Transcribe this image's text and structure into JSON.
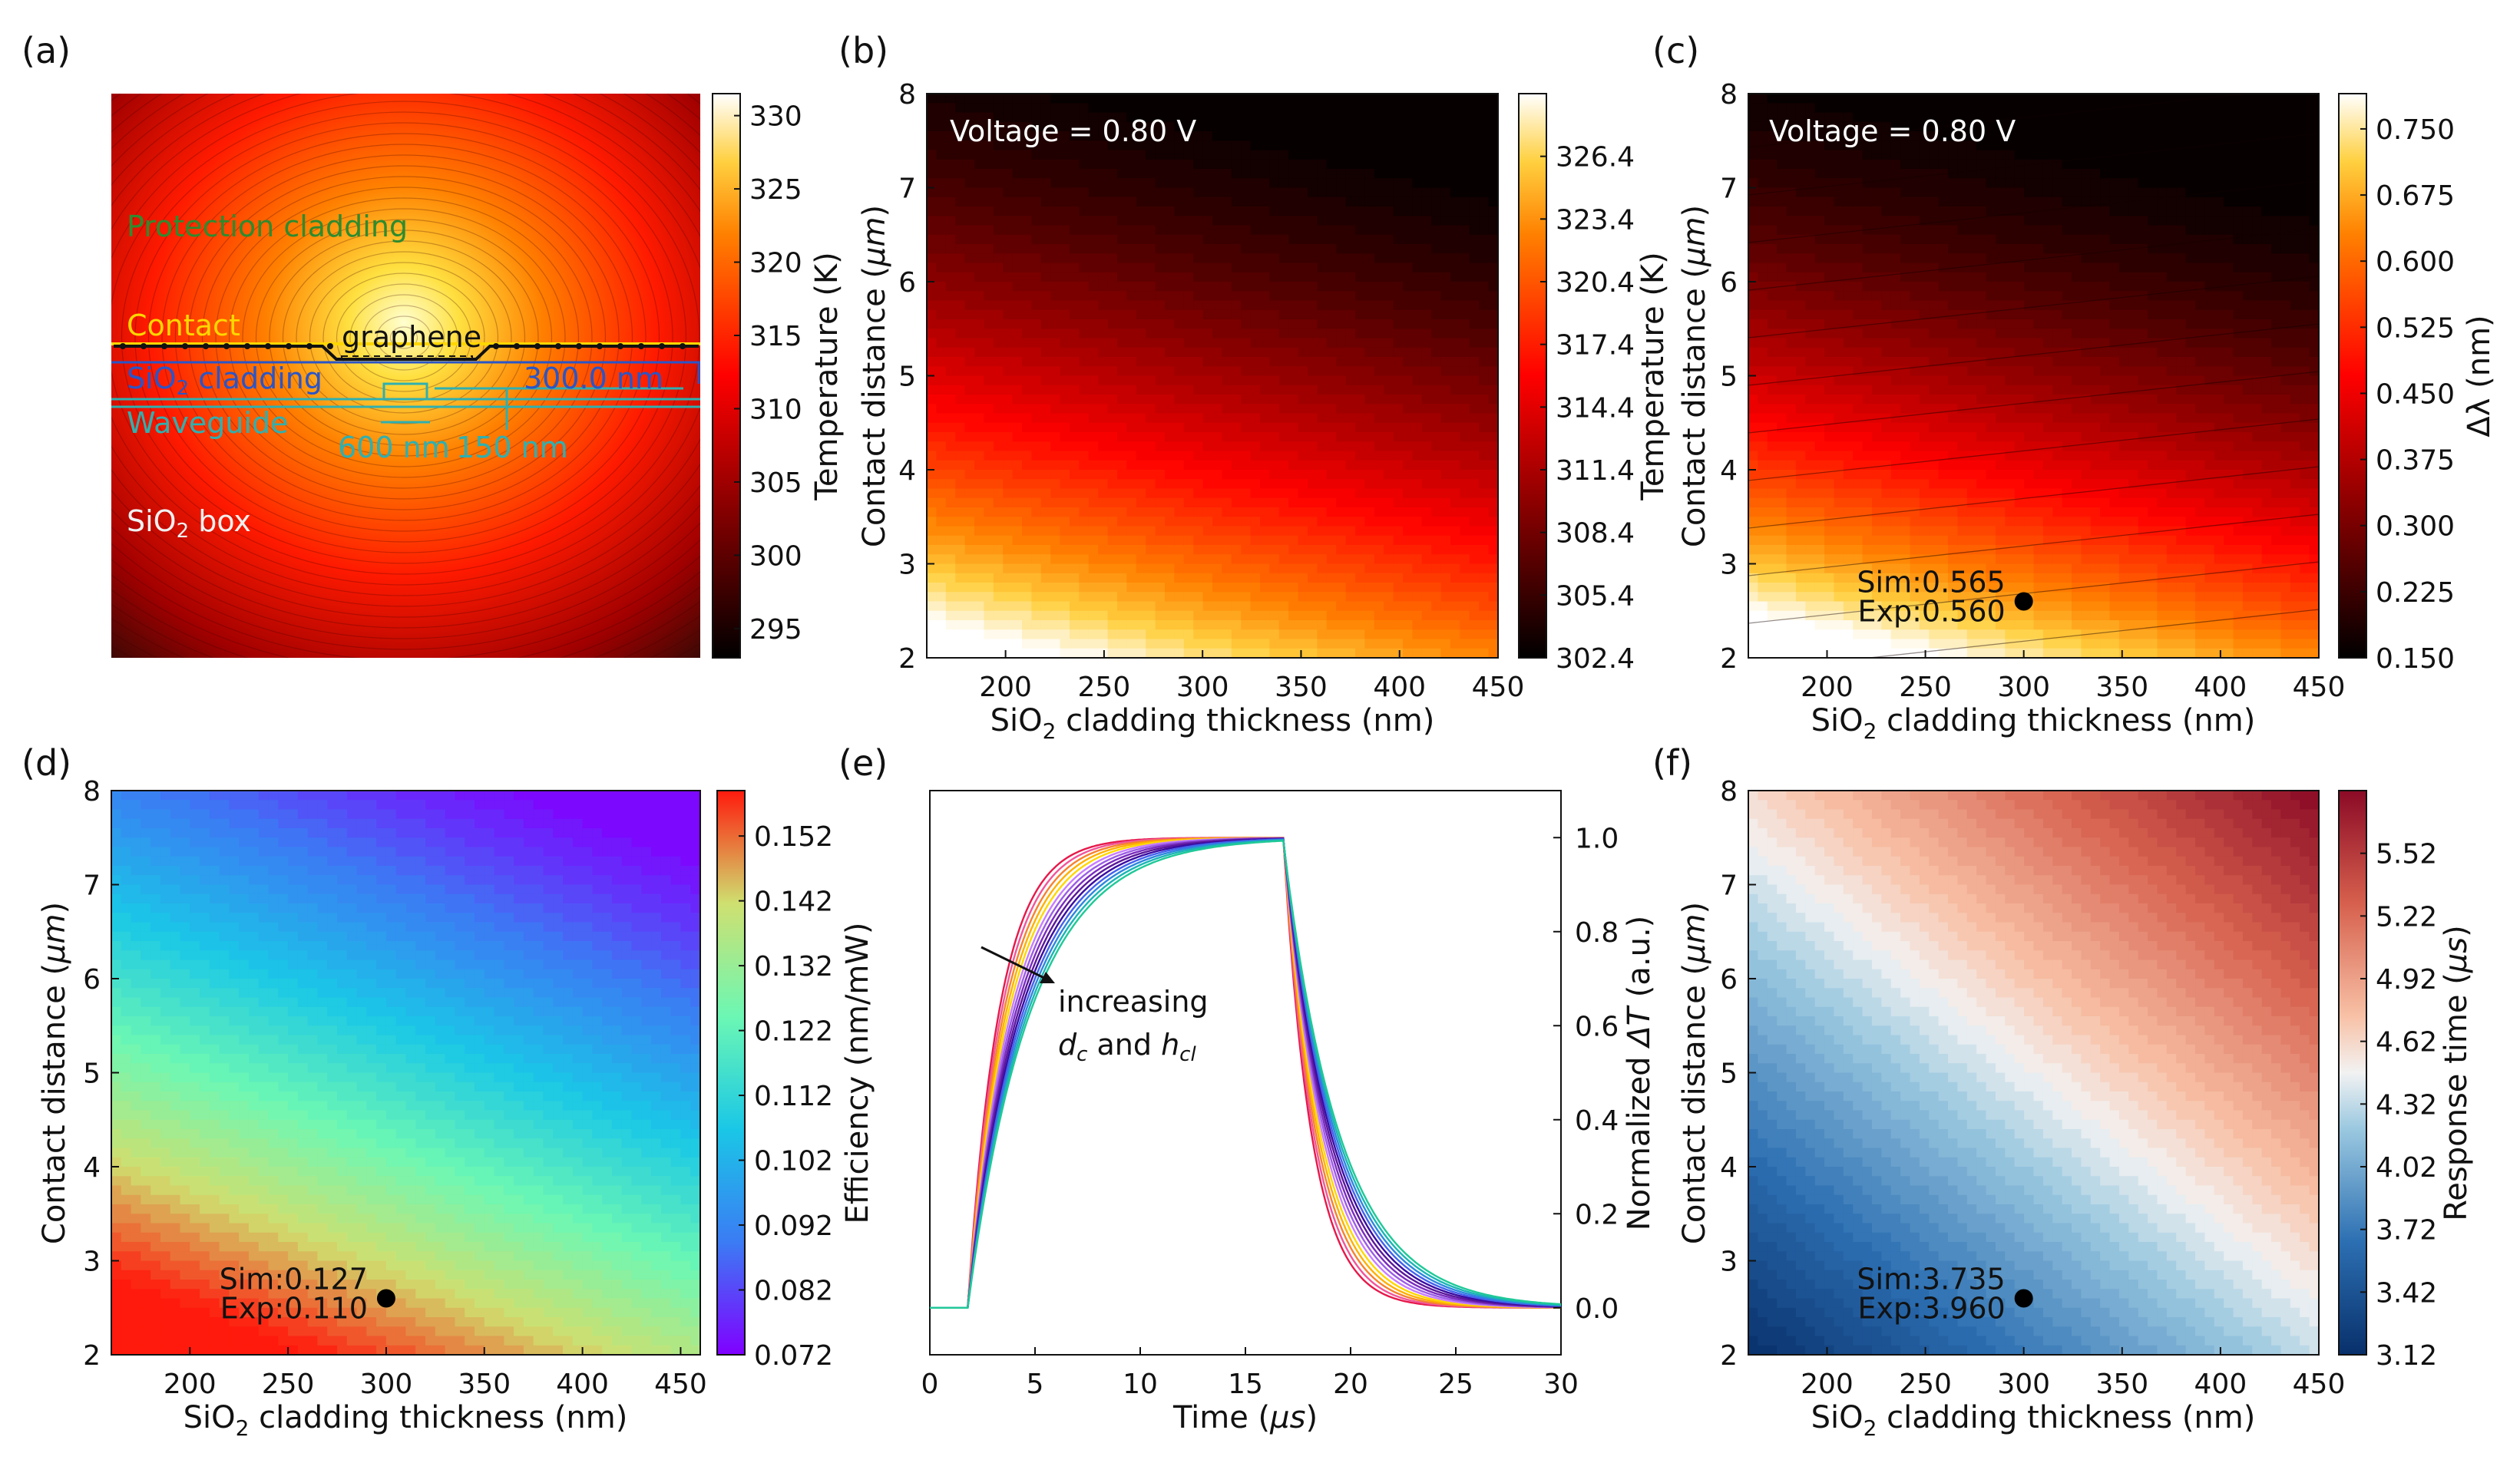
{
  "chart_data": [
    {
      "panel": "(a)",
      "type": "heatmap",
      "description_labels": {
        "protection": "Protection cladding",
        "contact": "Contact",
        "graphene": "graphene",
        "cladding": "SiO",
        "cladding_rest": " cladding",
        "waveguide": "Waveguide",
        "box": "SiO",
        "box_rest": " box",
        "dim1": "300.0 nm",
        "dim2": "600 nm",
        "dim3": "150 nm"
      },
      "colorbar": {
        "label": "Temperature (K)",
        "ticks": [
          295,
          300,
          305,
          310,
          315,
          320,
          325,
          330
        ],
        "range": [
          293,
          331.5
        ],
        "cmap": "afmhot"
      }
    },
    {
      "panel": "(b)",
      "type": "heatmap",
      "annotation": "Voltage = 0.80 V",
      "xlabel_main": "SiO",
      "xlabel_sub": "2",
      "xlabel_rest": " cladding thickness (nm)",
      "ylabel_main": "Contact distance (",
      "ylabel_unit": "μm",
      "ylabel_close": ")",
      "xlim": [
        160,
        450
      ],
      "ylim": [
        2,
        8
      ],
      "xticks": [
        200,
        250,
        300,
        350,
        400,
        450
      ],
      "yticks": [
        2,
        3,
        4,
        5,
        6,
        7,
        8
      ],
      "colorbar": {
        "label": "Temperature (K)",
        "ticks": [
          "302.4",
          "305.4",
          "308.4",
          "311.4",
          "314.4",
          "317.4",
          "320.4",
          "323.4",
          "326.4"
        ],
        "range": [
          302.4,
          329.4
        ],
        "cmap": "afmhot"
      }
    },
    {
      "panel": "(c)",
      "type": "heatmap",
      "annotation": "Voltage = 0.80 V",
      "xlabel_main": "SiO",
      "xlabel_sub": "2",
      "xlabel_rest": " cladding thickness (nm)",
      "ylabel_main": "Contact distance (",
      "ylabel_unit": "μm",
      "ylabel_close": ")",
      "xlim": [
        160,
        450
      ],
      "ylim": [
        2,
        8
      ],
      "xticks": [
        200,
        250,
        300,
        350,
        400,
        450
      ],
      "yticks": [
        2,
        3,
        4,
        5,
        6,
        7,
        8
      ],
      "point": {
        "x": 300,
        "y": 2.6,
        "sim": "Sim:0.565",
        "exp": "Exp:0.560"
      },
      "colorbar": {
        "label": "Δλ (nm)",
        "ticks": [
          "0.150",
          "0.225",
          "0.300",
          "0.375",
          "0.450",
          "0.525",
          "0.600",
          "0.675",
          "0.750"
        ],
        "range": [
          0.15,
          0.79
        ],
        "cmap": "afmhot"
      }
    },
    {
      "panel": "(d)",
      "type": "heatmap",
      "xlabel_main": "SiO",
      "xlabel_sub": "2",
      "xlabel_rest": " cladding thickness (nm)",
      "ylabel_main": "Contact distance (",
      "ylabel_unit": "μm",
      "ylabel_close": ")",
      "xlim": [
        160,
        460
      ],
      "ylim": [
        2,
        8
      ],
      "xticks": [
        200,
        250,
        300,
        350,
        400,
        450
      ],
      "yticks": [
        2,
        3,
        4,
        5,
        6,
        7,
        8
      ],
      "point": {
        "x": 300,
        "y": 2.6,
        "sim": "Sim:0.127",
        "exp": "Exp:0.110"
      },
      "colorbar": {
        "label": "Efficiency (nm/mW)",
        "ticks": [
          "0.072",
          "0.082",
          "0.092",
          "0.102",
          "0.112",
          "0.122",
          "0.132",
          "0.142",
          "0.152"
        ],
        "range": [
          0.072,
          0.159
        ],
        "cmap": "rainbow"
      }
    },
    {
      "panel": "(e)",
      "type": "line",
      "xlabel_main": "Time (",
      "xlabel_unit": "μs",
      "xlabel_close": ")",
      "ylabel_main": "Normalized ",
      "ylabel_var": "ΔT",
      "ylabel_rest": " (a.u.)",
      "xlim": [
        0,
        30
      ],
      "ylim": [
        -0.1,
        1.1
      ],
      "xticks": [
        0,
        5,
        10,
        15,
        20,
        25,
        30
      ],
      "yticks": [
        "0.0",
        "0.2",
        "0.4",
        "0.6",
        "0.8",
        "1.0"
      ],
      "annotation_line1": "increasing",
      "annotation_d": "d",
      "annotation_c": "c",
      "annotation_and": " and ",
      "annotation_h": "h",
      "annotation_cl": "cl",
      "series_description": "family of step responses: rise at t=1.8 μs, fall at t=16.8 μs, time constants increase with contact distance and cladding thickness",
      "tau_range_us": [
        1.5,
        3.0
      ],
      "series_count": 14
    },
    {
      "panel": "(f)",
      "type": "heatmap",
      "xlabel_main": "SiO",
      "xlabel_sub": "2",
      "xlabel_rest": " cladding thickness (nm)",
      "ylabel_main": "Contact distance (",
      "ylabel_unit": "μm",
      "ylabel_close": ")",
      "xlim": [
        160,
        450
      ],
      "ylim": [
        2,
        8
      ],
      "xticks": [
        200,
        250,
        300,
        350,
        400,
        450
      ],
      "yticks": [
        2,
        3,
        4,
        5,
        6,
        7,
        8
      ],
      "point": {
        "x": 300,
        "y": 2.6,
        "sim": "Sim:3.735",
        "exp": "Exp:3.960"
      },
      "colorbar": {
        "label_main": "Response time (",
        "label_unit": "μs",
        "label_close": ")",
        "ticks": [
          "3.12",
          "3.42",
          "3.72",
          "4.02",
          "4.32",
          "4.62",
          "4.92",
          "5.22",
          "5.52"
        ],
        "range": [
          3.12,
          5.82
        ],
        "cmap": "RdBu_r"
      }
    }
  ],
  "panel_labels": [
    "(a)",
    "(b)",
    "(c)",
    "(d)",
    "(e)",
    "(f)"
  ]
}
